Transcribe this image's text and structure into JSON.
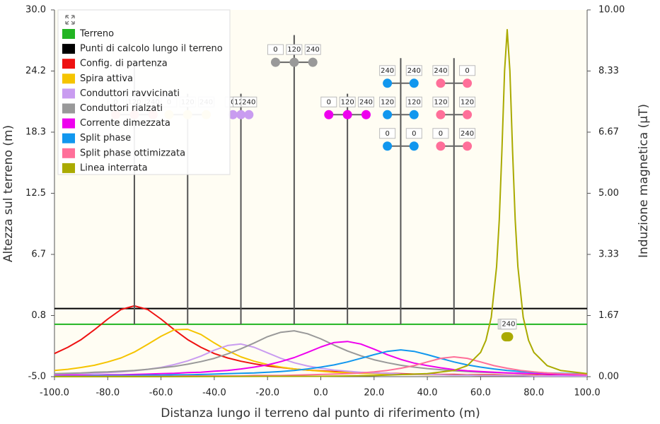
{
  "chart_data": {
    "type": "line",
    "x_label": "Distanza lungo il terreno dal punto di riferimento (m)",
    "y_label": "Altezza sul terreno (m)",
    "y2_label": "Induzione magnetica (µT)",
    "xlim": [
      -100,
      100
    ],
    "xticks": [
      {
        "value": -100,
        "label": "-100.0"
      },
      {
        "value": -80,
        "label": "-80.0"
      },
      {
        "value": -60,
        "label": "-60.0"
      },
      {
        "value": -40,
        "label": "-40.0"
      },
      {
        "value": -20,
        "label": "-20.0"
      },
      {
        "value": 0,
        "label": "0.0"
      },
      {
        "value": 20,
        "label": "20.0"
      },
      {
        "value": 40,
        "label": "40.0"
      },
      {
        "value": 60,
        "label": "60.0"
      },
      {
        "value": 80,
        "label": "80.0"
      },
      {
        "value": 100,
        "label": "100.0"
      }
    ],
    "ylim": [
      -5,
      30
    ],
    "yticks": [
      {
        "value": -5,
        "label": "-5.0"
      },
      {
        "value": 0.8333,
        "label": "0.8"
      },
      {
        "value": 6.6667,
        "label": "6.7"
      },
      {
        "value": 12.5,
        "label": "12.5"
      },
      {
        "value": 18.3333,
        "label": "18.3"
      },
      {
        "value": 24.1667,
        "label": "24.2"
      },
      {
        "value": 30,
        "label": "30.0"
      }
    ],
    "y2lim": [
      0,
      10
    ],
    "y2ticks": [
      {
        "value": 0,
        "label": "0.00"
      },
      {
        "value": 1.6667,
        "label": "1.67"
      },
      {
        "value": 3.3333,
        "label": "3.33"
      },
      {
        "value": 5,
        "label": "5.00"
      },
      {
        "value": 6.6667,
        "label": "6.67"
      },
      {
        "value": 8.3333,
        "label": "8.33"
      },
      {
        "value": 10,
        "label": "10.00"
      }
    ],
    "legend": "top-left",
    "x": [
      -100,
      -95,
      -90,
      -85,
      -80,
      -75,
      -70,
      -65,
      -60,
      -55,
      -50,
      -45,
      -40,
      -35,
      -30,
      -25,
      -20,
      -15,
      -10,
      -5,
      0,
      5,
      10,
      15,
      20,
      25,
      30,
      35,
      40,
      45,
      50,
      55,
      60,
      65,
      70,
      75,
      80,
      85,
      90,
      95,
      100
    ],
    "series": [
      {
        "name": "Terreno",
        "color": "#22b422",
        "level": 0
      },
      {
        "name": "Punti di calcolo lungo il terreno",
        "color": "#000000",
        "level": 1.5
      },
      {
        "name": "Config. di partenza",
        "color": "#ee1111",
        "conductor_color": "#ff8a8a",
        "axis": "y2",
        "tower": {
          "x": -70,
          "height": 25
        },
        "conductors": [
          {
            "x": -77,
            "y": 20,
            "phase": 0
          },
          {
            "x": -70,
            "y": 20,
            "phase": 120
          },
          {
            "x": -63,
            "y": 20,
            "phase": 240
          }
        ],
        "values": [
          0.63,
          0.8,
          1.01,
          1.28,
          1.57,
          1.83,
          1.93,
          1.83,
          1.57,
          1.28,
          1.01,
          0.8,
          0.63,
          0.51,
          0.42,
          0.35,
          0.29,
          0.25,
          0.21,
          0.18,
          0.16,
          0.14,
          0.12,
          0.11,
          0.1,
          0.09,
          0.08,
          0.07,
          0.07,
          0.06,
          0.06,
          0.05,
          0.05,
          0.05,
          0.04,
          0.04,
          0.04,
          0.03,
          0.03,
          0.03,
          0.03
        ]
      },
      {
        "name": "Spira attiva",
        "color": "#f5c400",
        "conductor_color": "#ffe070",
        "axis": "y2",
        "tower": {
          "x": -50,
          "height": 22
        },
        "conductors": [
          {
            "x": -57,
            "y": 20,
            "phase": 0
          },
          {
            "x": -50,
            "y": 20,
            "phase": 120
          },
          {
            "x": -43,
            "y": 20,
            "phase": 240
          }
        ],
        "values": [
          0.17,
          0.2,
          0.25,
          0.31,
          0.4,
          0.51,
          0.67,
          0.88,
          1.1,
          1.28,
          1.29,
          1.15,
          0.92,
          0.71,
          0.54,
          0.42,
          0.33,
          0.26,
          0.21,
          0.18,
          0.15,
          0.12,
          0.11,
          0.09,
          0.08,
          0.07,
          0.06,
          0.06,
          0.05,
          0.05,
          0.04,
          0.04,
          0.03,
          0.03,
          0.03,
          0.03,
          0.03,
          0.02,
          0.02,
          0.02,
          0.02
        ]
      },
      {
        "name": "Conduttori ravvicinati",
        "color": "#c99cf0",
        "conductor_color": "#c99cf0",
        "axis": "y2",
        "tower": {
          "x": -30,
          "height": 22
        },
        "conductors": [
          {
            "x": -33,
            "y": 20,
            "phase": 0
          },
          {
            "x": -30,
            "y": 20,
            "phase": 120
          },
          {
            "x": -27,
            "y": 20,
            "phase": 240
          }
        ],
        "values": [
          0.06,
          0.07,
          0.08,
          0.09,
          0.11,
          0.13,
          0.16,
          0.2,
          0.25,
          0.33,
          0.43,
          0.56,
          0.72,
          0.85,
          0.89,
          0.8,
          0.65,
          0.5,
          0.38,
          0.29,
          0.23,
          0.18,
          0.15,
          0.12,
          0.1,
          0.09,
          0.07,
          0.06,
          0.06,
          0.05,
          0.04,
          0.04,
          0.03,
          0.03,
          0.03,
          0.03,
          0.02,
          0.02,
          0.02,
          0.02,
          0.02
        ]
      },
      {
        "name": "Conduttori rialzati",
        "color": "#999999",
        "conductor_color": "#999999",
        "axis": "y2",
        "tower": {
          "x": -10,
          "height": 27.6
        },
        "conductors": [
          {
            "x": -17,
            "y": 25,
            "phase": 0
          },
          {
            "x": -10,
            "y": 25,
            "phase": 120
          },
          {
            "x": -3,
            "y": 25,
            "phase": 240
          }
        ],
        "values": [
          0.08,
          0.09,
          0.1,
          0.12,
          0.13,
          0.15,
          0.17,
          0.2,
          0.24,
          0.28,
          0.34,
          0.41,
          0.5,
          0.62,
          0.76,
          0.92,
          1.09,
          1.21,
          1.25,
          1.17,
          1.03,
          0.86,
          0.7,
          0.57,
          0.46,
          0.38,
          0.31,
          0.26,
          0.22,
          0.19,
          0.16,
          0.14,
          0.12,
          0.11,
          0.1,
          0.09,
          0.08,
          0.07,
          0.06,
          0.06,
          0.05
        ]
      },
      {
        "name": "Corrente dimezzata",
        "color": "#ee00ee",
        "conductor_color": "#ee00ee",
        "axis": "y2",
        "tower": {
          "x": 10,
          "height": 22
        },
        "conductors": [
          {
            "x": 3,
            "y": 20,
            "phase": 0
          },
          {
            "x": 10,
            "y": 20,
            "phase": 120
          },
          {
            "x": 17,
            "y": 20,
            "phase": 240
          }
        ],
        "values": [
          0.03,
          0.04,
          0.04,
          0.04,
          0.05,
          0.05,
          0.06,
          0.07,
          0.08,
          0.09,
          0.11,
          0.12,
          0.15,
          0.17,
          0.21,
          0.26,
          0.32,
          0.41,
          0.52,
          0.66,
          0.81,
          0.93,
          0.96,
          0.89,
          0.75,
          0.6,
          0.47,
          0.37,
          0.3,
          0.24,
          0.19,
          0.16,
          0.14,
          0.12,
          0.1,
          0.09,
          0.08,
          0.07,
          0.06,
          0.05,
          0.05
        ]
      },
      {
        "name": "Split phase",
        "color": "#1197ee",
        "conductor_color": "#1197ee",
        "axis": "y2",
        "tower": {
          "x": 30,
          "height": 25.4
        },
        "conductors": [
          {
            "x": 25,
            "y": 23,
            "phase": 240
          },
          {
            "x": 35,
            "y": 23,
            "phase": 240
          },
          {
            "x": 25,
            "y": 20,
            "phase": 120
          },
          {
            "x": 35,
            "y": 20,
            "phase": 120
          },
          {
            "x": 25,
            "y": 17,
            "phase": 0
          },
          {
            "x": 35,
            "y": 17,
            "phase": 0
          }
        ],
        "values": [
          0.02,
          0.02,
          0.02,
          0.03,
          0.03,
          0.03,
          0.03,
          0.04,
          0.04,
          0.05,
          0.05,
          0.06,
          0.07,
          0.08,
          0.09,
          0.1,
          0.12,
          0.14,
          0.17,
          0.21,
          0.26,
          0.32,
          0.4,
          0.5,
          0.6,
          0.69,
          0.73,
          0.69,
          0.6,
          0.5,
          0.4,
          0.32,
          0.26,
          0.21,
          0.17,
          0.14,
          0.12,
          0.1,
          0.09,
          0.08,
          0.07
        ]
      },
      {
        "name": "Split phase ottimizzata",
        "color": "#ff6f99",
        "conductor_color": "#ff6f99",
        "axis": "y2",
        "tower": {
          "x": 50,
          "height": 25.4
        },
        "conductors": [
          {
            "x": 45,
            "y": 23,
            "phase": 240
          },
          {
            "x": 55,
            "y": 23,
            "phase": 0
          },
          {
            "x": 45,
            "y": 20,
            "phase": 120
          },
          {
            "x": 55,
            "y": 20,
            "phase": 120
          },
          {
            "x": 45,
            "y": 17,
            "phase": 0
          },
          {
            "x": 55,
            "y": 17,
            "phase": 240
          }
        ],
        "values": [
          0.01,
          0.01,
          0.01,
          0.01,
          0.01,
          0.01,
          0.01,
          0.01,
          0.01,
          0.01,
          0.02,
          0.02,
          0.02,
          0.02,
          0.02,
          0.03,
          0.03,
          0.03,
          0.04,
          0.05,
          0.06,
          0.07,
          0.08,
          0.1,
          0.13,
          0.17,
          0.23,
          0.3,
          0.4,
          0.5,
          0.54,
          0.5,
          0.4,
          0.3,
          0.23,
          0.17,
          0.13,
          0.1,
          0.08,
          0.07,
          0.06
        ]
      },
      {
        "name": "Linea interrata",
        "color": "#aaaa00",
        "conductor_color": "#aaaa00",
        "axis": "y2",
        "conductors": [
          {
            "x": 69.5,
            "y": -1.2,
            "phase": 0
          },
          {
            "x": 70,
            "y": -1.2,
            "phase": 120
          },
          {
            "x": 70.5,
            "y": -1.2,
            "phase": 240
          }
        ],
        "x": [
          -100,
          -60,
          -20,
          0,
          20,
          40,
          50,
          55,
          60,
          62,
          64,
          66,
          67,
          68,
          69,
          70,
          71,
          72,
          73,
          74,
          76,
          78,
          80,
          85,
          90,
          100
        ],
        "values": [
          0.0,
          0.0,
          0.01,
          0.01,
          0.03,
          0.08,
          0.17,
          0.3,
          0.66,
          0.99,
          1.62,
          3.0,
          4.28,
          6.15,
          8.34,
          9.46,
          8.34,
          6.15,
          4.28,
          3.0,
          1.62,
          0.99,
          0.66,
          0.3,
          0.17,
          0.08
        ]
      }
    ]
  }
}
